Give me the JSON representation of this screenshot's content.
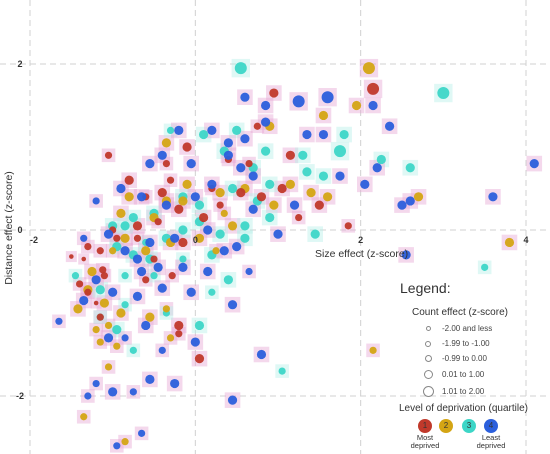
{
  "chart_data": {
    "type": "scatter",
    "title": "",
    "xlabel": "Size effect (z-score)",
    "ylabel": "Distance effect (z-score)",
    "xlim": [
      -2.05,
      4.2
    ],
    "ylim": [
      -2.7,
      2.1
    ],
    "x_ticks": [
      "-2",
      "0",
      "2",
      "4"
    ],
    "x_tick_values": [
      -2,
      0,
      2,
      4
    ],
    "y_ticks": [
      "2",
      "0",
      "-2"
    ],
    "y_tick_values": [
      2,
      0,
      -2
    ],
    "grid": true,
    "legend_placement": "bottom-right",
    "legend": {
      "heading": "Legend:",
      "count_title": "Count effect (z-score)",
      "count_bins": [
        "-2.00 and less",
        "-1.99 to -1.00",
        "-0.99 to 0.00",
        "0.01 to 1.00",
        "1.01 to 2.00"
      ],
      "deprivation_title": "Level of deprivation (quartile)",
      "deprivation_classes": [
        {
          "label": "1",
          "caption": "Most deprived",
          "color": "#c0392b"
        },
        {
          "label": "2",
          "caption": "",
          "color": "#d4a514"
        },
        {
          "label": "3",
          "caption": "",
          "color": "#3dd6c7"
        },
        {
          "label": "4",
          "caption": "Least deprived",
          "color": "#2b5fdc"
        }
      ]
    },
    "colors": {
      "q1": "#c0392b",
      "q2": "#d4a514",
      "q3": "#3dd6c7",
      "q4": "#2b5fdc",
      "halo": "#e6a9d4"
    },
    "series": [
      {
        "name": "Most deprived",
        "quartile": 1,
        "points": [
          [
            -1.05,
            0.9,
            2
          ],
          [
            -0.8,
            0.6,
            3
          ],
          [
            -0.6,
            0.4,
            2
          ],
          [
            -0.4,
            0.45,
            3
          ],
          [
            -0.3,
            0.6,
            2
          ],
          [
            -0.2,
            0.25,
            3
          ],
          [
            -0.7,
            0.05,
            3
          ],
          [
            -0.95,
            -0.1,
            2
          ],
          [
            -1.15,
            -0.25,
            2
          ],
          [
            -1.35,
            -0.35,
            1
          ],
          [
            -1.1,
            -0.55,
            2
          ],
          [
            -0.6,
            -0.6,
            2
          ],
          [
            -0.5,
            -0.35,
            2
          ],
          [
            -0.15,
            -0.15,
            3
          ],
          [
            0.1,
            0.15,
            3
          ],
          [
            0.3,
            0.3,
            2
          ],
          [
            0.4,
            0.85,
            2
          ],
          [
            0.55,
            0.45,
            3
          ],
          [
            0.8,
            0.4,
            3
          ],
          [
            1.05,
            0.5,
            3
          ],
          [
            1.15,
            0.9,
            3
          ],
          [
            0.95,
            1.65,
            3
          ],
          [
            1.25,
            0.15,
            2
          ],
          [
            1.5,
            0.3,
            3
          ],
          [
            1.85,
            0.05,
            2
          ],
          [
            2.15,
            1.7,
            4
          ],
          [
            0.75,
            1.25,
            2
          ],
          [
            -0.1,
            1.0,
            3
          ],
          [
            -1.3,
            -0.75,
            2
          ],
          [
            -1.2,
            -0.88,
            1
          ],
          [
            -1.15,
            -1.05,
            2
          ],
          [
            -0.2,
            -1.15,
            3
          ],
          [
            -0.2,
            -1.25,
            2
          ],
          [
            0.05,
            -1.55,
            3
          ],
          [
            -0.7,
            -0.1,
            2
          ],
          [
            -0.45,
            0.1,
            2
          ],
          [
            -1.4,
            -0.65,
            2
          ],
          [
            -1.3,
            -0.2,
            2
          ],
          [
            -1.0,
            0.0,
            2
          ],
          [
            -0.35,
            0.8,
            2
          ],
          [
            0.2,
            0.5,
            2
          ],
          [
            0.65,
            0.8,
            2
          ],
          [
            -1.12,
            -0.48,
            2
          ],
          [
            -0.28,
            -0.55,
            2
          ],
          [
            -1.5,
            -0.32,
            1
          ]
        ]
      },
      {
        "name": "",
        "quartile": 2,
        "points": [
          [
            -0.35,
            0.35,
            3
          ],
          [
            -0.15,
            0.35,
            3
          ],
          [
            0.3,
            0.45,
            3
          ],
          [
            0.6,
            0.5,
            3
          ],
          [
            0.95,
            0.3,
            3
          ],
          [
            1.15,
            0.55,
            3
          ],
          [
            1.4,
            0.45,
            3
          ],
          [
            1.6,
            0.4,
            3
          ],
          [
            1.95,
            1.5,
            3
          ],
          [
            2.1,
            1.95,
            4
          ],
          [
            2.7,
            0.4,
            3
          ],
          [
            3.8,
            -0.15,
            3
          ],
          [
            1.55,
            1.38,
            3
          ],
          [
            0.9,
            1.25,
            3
          ],
          [
            -0.35,
            1.05,
            3
          ],
          [
            -0.9,
            0.2,
            3
          ],
          [
            -0.5,
            0.15,
            3
          ],
          [
            0.35,
            0.2,
            2
          ],
          [
            0.05,
            -0.1,
            3
          ],
          [
            0.25,
            -0.25,
            2
          ],
          [
            -0.3,
            -0.15,
            3
          ],
          [
            -0.6,
            -0.25,
            3
          ],
          [
            -0.85,
            -0.1,
            3
          ],
          [
            -1.0,
            -0.25,
            2
          ],
          [
            -1.25,
            -0.5,
            3
          ],
          [
            -1.3,
            -0.72,
            3
          ],
          [
            -1.1,
            -0.88,
            3
          ],
          [
            -1.05,
            -1.15,
            2
          ],
          [
            -1.2,
            -1.2,
            2
          ],
          [
            -1.15,
            -1.35,
            2
          ],
          [
            -1.42,
            -0.95,
            3
          ],
          [
            -0.9,
            -1.0,
            3
          ],
          [
            -0.35,
            -0.95,
            2
          ],
          [
            2.15,
            -1.45,
            2
          ],
          [
            -0.55,
            -1.05,
            3
          ],
          [
            -0.3,
            -1.3,
            2
          ],
          [
            -1.05,
            -1.65,
            2
          ],
          [
            -0.85,
            -2.55,
            2
          ],
          [
            -1.35,
            -2.25,
            2
          ],
          [
            -0.95,
            -1.4,
            2
          ],
          [
            -0.8,
            0.4,
            3
          ],
          [
            -0.1,
            0.55,
            3
          ],
          [
            0.45,
            0.05,
            3
          ]
        ]
      },
      {
        "name": "",
        "quartile": 3,
        "points": [
          [
            0.55,
            1.95,
            4
          ],
          [
            3.0,
            1.65,
            4
          ],
          [
            2.25,
            0.85,
            3
          ],
          [
            1.75,
            0.95,
            4
          ],
          [
            1.3,
            0.9,
            3
          ],
          [
            0.7,
            0.75,
            3
          ],
          [
            0.5,
            1.2,
            3
          ],
          [
            0.35,
            0.95,
            3
          ],
          [
            0.1,
            1.15,
            3
          ],
          [
            -0.3,
            1.2,
            2
          ],
          [
            0.45,
            0.5,
            3
          ],
          [
            0.75,
            0.35,
            3
          ],
          [
            0.9,
            0.55,
            3
          ],
          [
            1.35,
            0.7,
            3
          ],
          [
            1.55,
            0.65,
            3
          ],
          [
            1.45,
            -0.05,
            3
          ],
          [
            0.9,
            0.15,
            3
          ],
          [
            0.6,
            0.05,
            3
          ],
          [
            0.3,
            -0.05,
            3
          ],
          [
            0.6,
            -0.1,
            3
          ],
          [
            0.05,
            0.3,
            3
          ],
          [
            -0.15,
            0.4,
            3
          ],
          [
            -0.5,
            0.2,
            3
          ],
          [
            -0.75,
            0.15,
            3
          ],
          [
            -0.85,
            0.05,
            3
          ],
          [
            -1.0,
            0.05,
            3
          ],
          [
            -0.95,
            -0.2,
            3
          ],
          [
            -0.75,
            -0.3,
            3
          ],
          [
            -0.55,
            -0.35,
            3
          ],
          [
            -0.35,
            -0.1,
            3
          ],
          [
            -0.15,
            0.0,
            3
          ],
          [
            0.05,
            0.1,
            3
          ],
          [
            0.2,
            -0.3,
            3
          ],
          [
            0.4,
            -0.6,
            3
          ],
          [
            -0.15,
            -0.35,
            2
          ],
          [
            -0.5,
            -0.55,
            2
          ],
          [
            -0.6,
            -0.15,
            2
          ],
          [
            -0.85,
            -0.55,
            2
          ],
          [
            -1.15,
            -0.72,
            3
          ],
          [
            -1.15,
            -1.05,
            2
          ],
          [
            -0.95,
            -1.2,
            3
          ],
          [
            -0.75,
            -1.45,
            2
          ],
          [
            -0.35,
            -1.0,
            2
          ],
          [
            0.05,
            -1.15,
            3
          ],
          [
            0.2,
            -0.75,
            2
          ],
          [
            -0.85,
            -0.9,
            2
          ],
          [
            3.5,
            -0.45,
            2
          ],
          [
            1.05,
            -1.7,
            2
          ],
          [
            -1.45,
            -0.55,
            2
          ],
          [
            1.8,
            1.15,
            3
          ],
          [
            2.6,
            0.75,
            3
          ],
          [
            0.85,
            0.95,
            3
          ]
        ]
      },
      {
        "name": "Least deprived",
        "quartile": 4,
        "points": [
          [
            -1.2,
            0.35,
            2
          ],
          [
            -0.55,
            0.8,
            3
          ],
          [
            -0.2,
            1.2,
            3
          ],
          [
            0.2,
            1.2,
            3
          ],
          [
            0.4,
            1.05,
            3
          ],
          [
            0.6,
            1.1,
            3
          ],
          [
            0.85,
            1.5,
            3
          ],
          [
            1.25,
            1.55,
            4
          ],
          [
            1.55,
            1.15,
            3
          ],
          [
            1.35,
            1.15,
            3
          ],
          [
            1.6,
            1.6,
            4
          ],
          [
            2.15,
            1.5,
            3
          ],
          [
            2.35,
            1.25,
            3
          ],
          [
            2.2,
            0.75,
            3
          ],
          [
            1.75,
            0.65,
            3
          ],
          [
            2.05,
            0.55,
            3
          ],
          [
            2.6,
            0.35,
            3
          ],
          [
            2.5,
            0.3,
            3
          ],
          [
            3.6,
            0.4,
            3
          ],
          [
            4.1,
            0.8,
            3
          ],
          [
            2.55,
            -0.3,
            3
          ],
          [
            0.6,
            1.6,
            3
          ],
          [
            0.4,
            0.9,
            3
          ],
          [
            0.2,
            0.55,
            3
          ],
          [
            -0.05,
            0.8,
            3
          ],
          [
            -0.4,
            0.9,
            3
          ],
          [
            -0.65,
            0.4,
            3
          ],
          [
            -0.9,
            0.5,
            3
          ],
          [
            -0.35,
            0.3,
            3
          ],
          [
            0.0,
            0.4,
            3
          ],
          [
            0.55,
            0.75,
            3
          ],
          [
            0.7,
            0.65,
            3
          ],
          [
            0.15,
            0.0,
            3
          ],
          [
            -0.25,
            -0.1,
            3
          ],
          [
            -0.55,
            -0.15,
            3
          ],
          [
            -0.7,
            -0.35,
            3
          ],
          [
            -1.05,
            -0.05,
            3
          ],
          [
            -0.85,
            -0.25,
            3
          ],
          [
            -0.65,
            -0.5,
            3
          ],
          [
            -0.45,
            -0.45,
            3
          ],
          [
            -0.15,
            -0.45,
            3
          ],
          [
            0.15,
            -0.5,
            3
          ],
          [
            0.35,
            -0.25,
            3
          ],
          [
            0.5,
            -0.2,
            3
          ],
          [
            0.65,
            -0.5,
            2
          ],
          [
            0.45,
            -0.9,
            3
          ],
          [
            -0.05,
            -0.75,
            3
          ],
          [
            -0.4,
            -0.7,
            3
          ],
          [
            -0.7,
            -0.8,
            3
          ],
          [
            -1.0,
            -0.75,
            3
          ],
          [
            -1.2,
            -0.6,
            3
          ],
          [
            -1.35,
            -0.85,
            3
          ],
          [
            -1.05,
            -1.3,
            3
          ],
          [
            -0.85,
            -1.3,
            2
          ],
          [
            -0.6,
            -1.15,
            3
          ],
          [
            -0.4,
            -1.45,
            2
          ],
          [
            -0.25,
            -1.85,
            3
          ],
          [
            -0.55,
            -1.8,
            3
          ],
          [
            -0.75,
            -1.95,
            2
          ],
          [
            -1.0,
            -1.95,
            3
          ],
          [
            -1.2,
            -1.85,
            2
          ],
          [
            -1.3,
            -2.0,
            2
          ],
          [
            0.8,
            -1.5,
            3
          ],
          [
            0.45,
            -2.05,
            3
          ],
          [
            0.0,
            -1.35,
            3
          ],
          [
            -0.65,
            -2.45,
            2
          ],
          [
            -0.95,
            -2.6,
            2
          ],
          [
            -1.65,
            -1.1,
            2
          ],
          [
            1.0,
            -0.05,
            3
          ],
          [
            0.7,
            0.25,
            3
          ],
          [
            0.85,
            1.3,
            3
          ],
          [
            1.2,
            0.3,
            3
          ],
          [
            -1.35,
            -0.1,
            2
          ]
        ]
      }
    ]
  }
}
